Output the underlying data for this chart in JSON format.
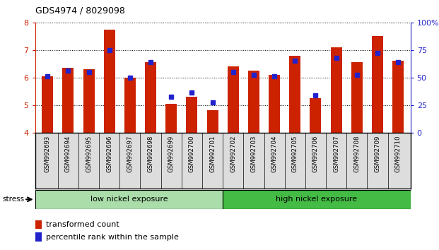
{
  "title": "GDS4974 / 8029098",
  "samples": [
    "GSM992693",
    "GSM992694",
    "GSM992695",
    "GSM992696",
    "GSM992697",
    "GSM992698",
    "GSM992699",
    "GSM992700",
    "GSM992701",
    "GSM992702",
    "GSM992703",
    "GSM992704",
    "GSM992705",
    "GSM992706",
    "GSM992707",
    "GSM992708",
    "GSM992709",
    "GSM992710"
  ],
  "red_values": [
    6.05,
    6.35,
    6.3,
    7.75,
    6.0,
    6.55,
    5.05,
    5.3,
    4.8,
    6.4,
    6.25,
    6.1,
    6.8,
    5.25,
    7.1,
    6.55,
    7.5,
    6.6
  ],
  "blue_values": [
    6.05,
    6.25,
    6.2,
    7.0,
    6.0,
    6.55,
    5.3,
    5.45,
    5.1,
    6.2,
    6.1,
    6.05,
    6.6,
    5.35,
    6.7,
    6.1,
    6.9,
    6.55
  ],
  "ylim": [
    4,
    8
  ],
  "yticks": [
    4,
    5,
    6,
    7,
    8
  ],
  "right_yticks": [
    0,
    25,
    50,
    75,
    100
  ],
  "group1_label": "low nickel exposure",
  "group2_label": "high nickel exposure",
  "group1_count": 9,
  "stress_label": "stress",
  "legend1": "transformed count",
  "legend2": "percentile rank within the sample",
  "bar_color": "#cc2200",
  "blue_color": "#2222cc",
  "group1_bg": "#aaddaa",
  "group2_bg": "#44bb44",
  "title_color": "#000000",
  "left_tick_color": "#cc2200",
  "right_tick_color": "#2222cc",
  "bar_width": 0.55
}
